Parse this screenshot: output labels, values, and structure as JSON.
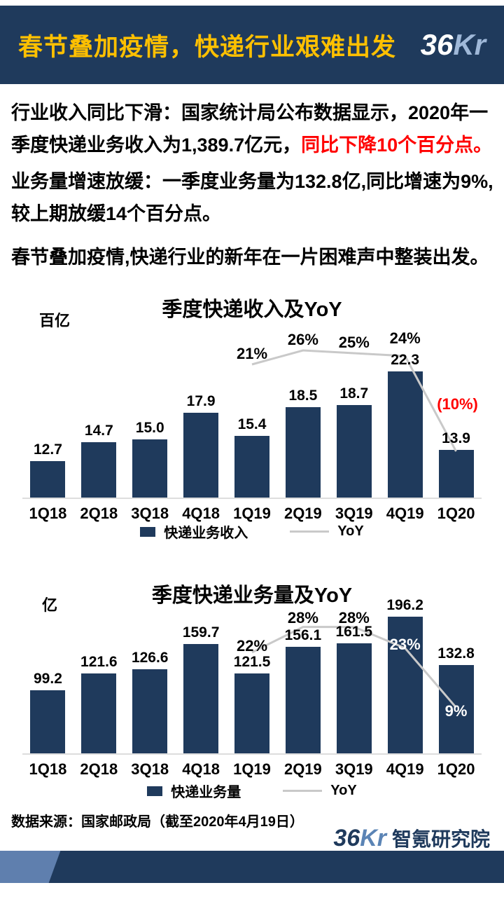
{
  "header": {
    "title": "春节叠加疫情，快递行业艰难出发",
    "logo": {
      "num": "36",
      "kr": "Kr"
    }
  },
  "intro": {
    "p1": {
      "label": "行业收入同比下滑：",
      "text": "国家统计局公布数据显示，2020年一季度快递业务收入为1,389.7亿元，",
      "highlight": "同比下降10个百分点。"
    },
    "p2": {
      "label": "业务量增速放缓：",
      "text": "一季度业务量为132.8亿,同比增速为9%,较上期放缓14个百分点。"
    },
    "p3": "春节叠加疫情,快递行业的新年在一片困难声中整装出发。"
  },
  "chart_data": [
    {
      "type": "bar+line",
      "title": "季度快递收入及YoY",
      "unit": "百亿",
      "categories": [
        "1Q18",
        "2Q18",
        "3Q18",
        "4Q18",
        "1Q19",
        "2Q19",
        "3Q19",
        "4Q19",
        "1Q20"
      ],
      "series": [
        {
          "name": "快递业务收入",
          "type": "bar",
          "values": [
            12.7,
            14.7,
            15.0,
            17.9,
            15.4,
            18.5,
            18.7,
            22.3,
            13.9
          ],
          "value_labels": [
            "12.7",
            "14.7",
            "15.0",
            "17.9",
            "15.4",
            "18.5",
            "18.7",
            "22.3",
            "13.9"
          ]
        },
        {
          "name": "YoY",
          "type": "line",
          "values": [
            null,
            null,
            null,
            null,
            21,
            26,
            25,
            24,
            -10
          ],
          "point_labels": [
            null,
            null,
            null,
            null,
            "21%",
            "26%",
            "25%",
            "24%",
            "(10%)"
          ],
          "label_colors": [
            null,
            null,
            null,
            null,
            "#000000",
            "#000000",
            "#000000",
            "#000000",
            "#FF0000"
          ]
        }
      ],
      "ylim": [
        8.8,
        23.2
      ],
      "grid": false,
      "legend_position": "bottom"
    },
    {
      "type": "bar+line",
      "title": "季度快递业务量及YoY",
      "unit": "亿",
      "categories": [
        "1Q18",
        "2Q18",
        "3Q18",
        "4Q18",
        "1Q19",
        "2Q19",
        "3Q19",
        "4Q19",
        "1Q20"
      ],
      "series": [
        {
          "name": "快递业务量",
          "type": "bar",
          "values": [
            99.2,
            121.6,
            126.6,
            159.7,
            121.5,
            156.1,
            161.5,
            196.2,
            132.8
          ],
          "value_labels": [
            "99.2",
            "121.6",
            "126.6",
            "159.7",
            "121.5",
            "156.1",
            "161.5",
            "196.2",
            "132.8"
          ]
        },
        {
          "name": "YoY",
          "type": "line",
          "values": [
            null,
            null,
            null,
            null,
            22,
            28,
            28,
            23,
            9
          ],
          "point_labels": [
            null,
            null,
            null,
            null,
            "22%",
            "28%",
            "28%",
            "23%",
            "9%"
          ],
          "label_colors": [
            null,
            null,
            null,
            null,
            "#000000",
            "#000000",
            "#000000",
            "#FFFFFF",
            "#FFFFFF"
          ]
        }
      ],
      "ylim": [
        16,
        196.2
      ],
      "grid": false,
      "legend_position": "bottom"
    }
  ],
  "footer": {
    "source": "数据来源：国家邮政局（截至2020年4月19日）",
    "logo": {
      "num": "36",
      "kr": "Kr",
      "name": "智氪研究院"
    }
  },
  "colors": {
    "navy": "#1F3A5C",
    "bar": "#1F3A5C",
    "yoy_line": "#C9C9C9",
    "title_yellow": "#FFC000",
    "highlight_red": "#FF0000"
  }
}
